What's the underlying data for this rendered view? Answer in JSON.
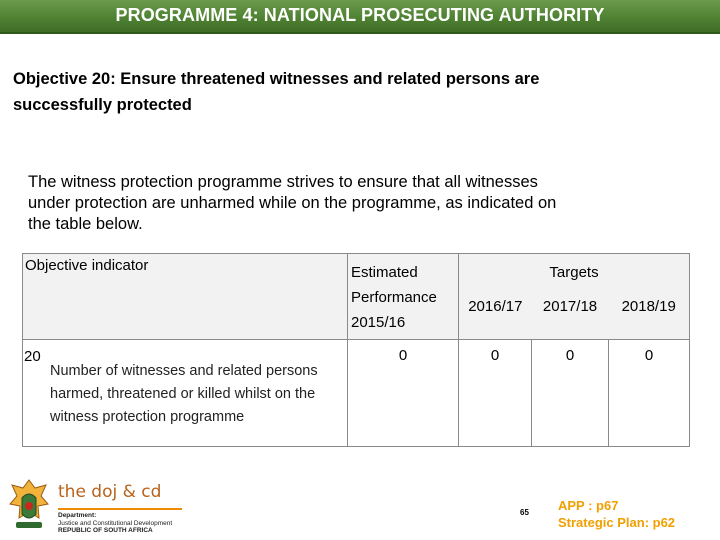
{
  "header": {
    "title": "PROGRAMME 4: NATIONAL PROSECUTING AUTHORITY"
  },
  "objective": {
    "line1": "Objective 20: Ensure threatened witnesses and related persons are",
    "line2": "successfully protected"
  },
  "intro": {
    "line1": "The witness protection programme strives to ensure that all witnesses",
    "line2": "under protection are unharmed while on the programme, as indicated on",
    "line3": "the table below."
  },
  "table": {
    "header_indicator": "Objective  indicator",
    "header_estimated_1": "Estimated",
    "header_estimated_2": "Performance",
    "header_estimated_3": "2015/16",
    "header_targets": "Targets",
    "years": [
      "2016/17",
      "2017/18",
      "2018/19"
    ],
    "rows": [
      {
        "number": "20",
        "desc_1": "Number of witnesses and related persons",
        "desc_2": "harmed, threatened or killed whilst on the",
        "desc_3": "witness protection programme",
        "estimated": "0",
        "targets": [
          "0",
          "0",
          "0"
        ]
      }
    ]
  },
  "logo": {
    "name": "the doj & cd",
    "dept_1": "Department:",
    "dept_2": "Justice and Constitutional Development",
    "dept_3": "REPUBLIC OF SOUTH AFRICA"
  },
  "footer": {
    "page_number": "65",
    "app_ref": "APP : p67",
    "plan_ref": "Strategic Plan:  p62"
  },
  "colors": {
    "title_bar": "#4f8233",
    "reference_text": "#f0a000",
    "logo_text": "#b8621a"
  }
}
